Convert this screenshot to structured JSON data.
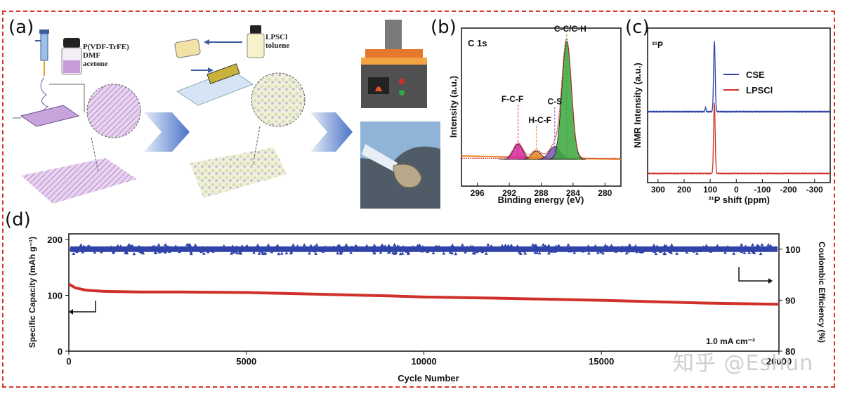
{
  "panel_labels": {
    "a": "(a)",
    "b": "(b)",
    "c": "(c)",
    "d": "(d)"
  },
  "schematic": {
    "syringe_reagents": [
      "P(VDF-TrFE)",
      "DMF",
      "acetone"
    ],
    "bottle_reagents": [
      "LPSCl",
      "toluene"
    ]
  },
  "watermark": "知乎 @Eshun",
  "colors": {
    "cse": "#2f43a8",
    "lpscl": "#d0302a",
    "fill_green": "#3aa63a",
    "fill_pink": "#d6249a",
    "fill_orange": "#e88428",
    "fill_purple": "#7a55b5"
  },
  "chart_data": [
    {
      "id": "b",
      "type": "line",
      "title": "C 1s",
      "xlabel": "Binding energy (eV)",
      "ylabel": "Intensity (a.u.)",
      "xlim": [
        298,
        278
      ],
      "x_ticks": [
        296,
        292,
        288,
        284,
        280
      ],
      "y_ticks": [],
      "peaks": [
        {
          "label": "F-C-F",
          "center": 290.9,
          "height": 0.13,
          "width": 0.6,
          "color": "#d6249a"
        },
        {
          "label": "H-C-F",
          "center": 288.6,
          "height": 0.07,
          "width": 0.6,
          "color": "#e88428"
        },
        {
          "label": "C-S",
          "center": 286.3,
          "height": 0.11,
          "width": 0.7,
          "color": "#7a55b5"
        },
        {
          "label": "C-C/C-H",
          "center": 284.8,
          "height": 1.0,
          "width": 0.6,
          "color": "#3aa63a"
        }
      ]
    },
    {
      "id": "c",
      "type": "line",
      "title": "³¹P",
      "xlabel": "³¹P shift (ppm)",
      "ylabel": "NMR Intensity (a.u.)",
      "xlim": [
        340,
        -360
      ],
      "x_ticks": [
        300,
        200,
        100,
        0,
        -100,
        -200,
        -300
      ],
      "y_ticks": [],
      "legend_position": "right",
      "series": [
        {
          "name": "CSE",
          "peak_x": 84,
          "color": "#2f43a8"
        },
        {
          "name": "LPSCl",
          "peak_x": 84,
          "color": "#d0302a"
        }
      ]
    },
    {
      "id": "d",
      "type": "scatter",
      "xlabel": "Cycle Number",
      "ylabel": "Specific Capacity (mAh g⁻¹)",
      "y2label": "Coulombic Efficiency (%)",
      "xlim": [
        0,
        20000
      ],
      "ylim": [
        0,
        210
      ],
      "y2lim": [
        80,
        103
      ],
      "x_ticks": [
        0,
        5000,
        10000,
        15000,
        20000
      ],
      "y_ticks": [
        0,
        100,
        200
      ],
      "y2_ticks": [
        80,
        90,
        100
      ],
      "annotation": "1.0 mA cm⁻²",
      "series": [
        {
          "name": "Specific Capacity",
          "axis": "left",
          "color": "#d0302a",
          "points": [
            [
              0,
              120
            ],
            [
              200,
              113
            ],
            [
              500,
              109
            ],
            [
              1000,
              107
            ],
            [
              2000,
              106
            ],
            [
              3000,
              106
            ],
            [
              5000,
              105
            ],
            [
              7000,
              102
            ],
            [
              9000,
              99
            ],
            [
              10000,
              97
            ],
            [
              12000,
              95
            ],
            [
              15000,
              91
            ],
            [
              18000,
              86
            ],
            [
              20000,
              84
            ]
          ]
        },
        {
          "name": "Coulombic Efficiency",
          "axis": "right",
          "color": "#2f43a8",
          "points": [
            [
              0,
              100
            ],
            [
              20000,
              100
            ]
          ]
        }
      ]
    }
  ]
}
